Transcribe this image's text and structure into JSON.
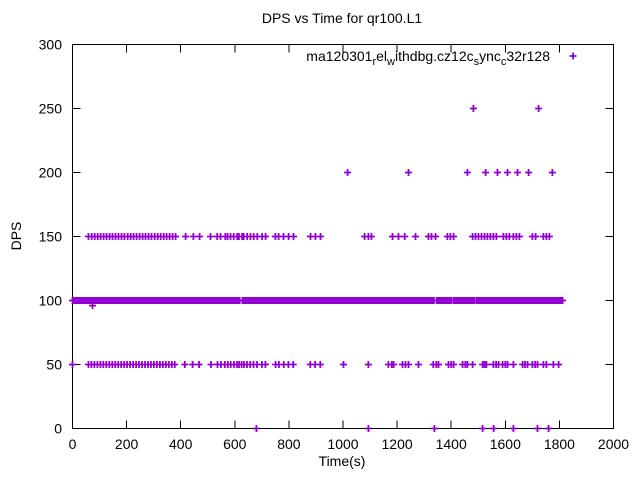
{
  "figure": {
    "title": "DPS vs Time for qr100.L1",
    "xlabel": "Time(s)",
    "ylabel": "DPS",
    "background_color": "#ffffff",
    "frame_color": "#000000"
  },
  "legend": {
    "plain_text": "ma120301_rel_withdbg.cz12c_sync_c32r128",
    "segments": [
      {
        "text": "ma120301"
      },
      {
        "sub": "r"
      },
      {
        "text": "el"
      },
      {
        "sub": "w"
      },
      {
        "text": "ithdbg.cz12c"
      },
      {
        "sub": "s"
      },
      {
        "text": "ync"
      },
      {
        "sub": "c"
      },
      {
        "text": "32r128"
      }
    ],
    "marker_symbol": "+",
    "marker_color": "#9400d3"
  },
  "chart_data": {
    "type": "scatter",
    "title": "DPS vs Time for qr100.L1",
    "xlabel": "Time(s)",
    "ylabel": "DPS",
    "xlim": [
      0,
      2000
    ],
    "ylim": [
      0,
      300
    ],
    "xticks": [
      0,
      200,
      400,
      600,
      800,
      1000,
      1200,
      1400,
      1600,
      1800,
      2000
    ],
    "yticks": [
      0,
      50,
      100,
      150,
      200,
      250,
      300
    ],
    "grid": false,
    "legend_position": "top-right-inside",
    "marker": "plus",
    "marker_color": "#9400d3",
    "series": [
      {
        "name": "ma120301_rel_withdbg.cz12c_sync_c32r128",
        "points_by_dps": {
          "0": [
            680,
            1094,
            1338,
            1516,
            1557,
            1630,
            1719,
            1760
          ],
          "50": [
            0,
            59,
            70,
            81,
            92,
            103,
            114,
            125,
            136,
            147,
            158,
            169,
            180,
            191,
            202,
            213,
            224,
            235,
            246,
            257,
            268,
            279,
            290,
            301,
            312,
            323,
            334,
            345,
            356,
            367,
            378,
            415,
            444,
            468,
            512,
            536,
            549,
            563,
            574,
            585,
            597,
            608,
            616,
            625,
            634,
            645,
            657,
            669,
            682,
            700,
            713,
            751,
            763,
            781,
            798,
            816,
            879,
            897,
            916,
            1002,
            1094,
            1168,
            1180,
            1187,
            1220,
            1231,
            1242,
            1279,
            1334,
            1345,
            1353,
            1390,
            1400,
            1409,
            1442,
            1452,
            1460,
            1479,
            1516,
            1523,
            1530,
            1556,
            1566,
            1575,
            1590,
            1600,
            1608,
            1630,
            1664,
            1673,
            1682,
            1700,
            1710,
            1719,
            1741,
            1752,
            1778,
            1797
          ],
          "150": [
            59,
            71,
            82,
            93,
            104,
            115,
            126,
            137,
            148,
            159,
            170,
            181,
            192,
            204,
            215,
            226,
            237,
            248,
            259,
            270,
            281,
            292,
            304,
            315,
            326,
            337,
            348,
            359,
            370,
            381,
            418,
            447,
            470,
            510,
            535,
            547,
            565,
            573,
            584,
            596,
            609,
            615,
            627,
            633,
            646,
            658,
            670,
            683,
            701,
            714,
            750,
            762,
            780,
            799,
            817,
            880,
            898,
            917,
            1080,
            1094,
            1105,
            1183,
            1205,
            1228,
            1268,
            1316,
            1327,
            1342,
            1386,
            1397,
            1409,
            1479,
            1490,
            1501,
            1512,
            1523,
            1534,
            1545,
            1556,
            1567,
            1593,
            1604,
            1615,
            1630,
            1641,
            1652,
            1700,
            1712,
            1741,
            1752,
            1763
          ],
          "200": [
            1017,
            1242,
            1460,
            1527,
            1571,
            1608,
            1645,
            1686,
            1774
          ],
          "250": [
            1482,
            1723
          ]
        },
        "dense_band": {
          "dps": 100,
          "step": 6,
          "time_ranges": [
            [
              0,
              600
            ],
            [
              606,
              622
            ],
            [
              628,
              1338
            ],
            [
              1346,
              1400
            ],
            [
              1408,
              1486
            ],
            [
              1494,
              1716
            ],
            [
              1722,
              1812
            ]
          ]
        },
        "extra_points": [
          {
            "t": 74,
            "dps": 96
          }
        ]
      }
    ]
  }
}
